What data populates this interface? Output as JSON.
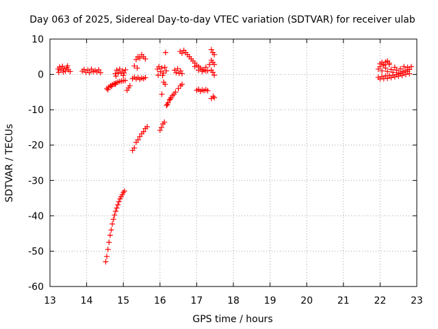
{
  "chart_data": {
    "type": "scatter",
    "title": "Day 063 of 2025, Sidereal Day-to-day VTEC variation (SDTVAR) for receiver ulab",
    "xlabel": "GPS time / hours",
    "ylabel": "SDTVAR / TECUs",
    "xlim": [
      13,
      23
    ],
    "ylim": [
      -60,
      10
    ],
    "xticks": [
      13,
      14,
      15,
      16,
      17,
      18,
      19,
      20,
      21,
      22,
      23
    ],
    "yticks": [
      10,
      0,
      -10,
      -20,
      -30,
      -40,
      -50,
      -60
    ],
    "xtick_labels": [
      "13",
      "14",
      "15",
      "16",
      "17",
      "18",
      "19",
      "20",
      "21",
      "22",
      "23"
    ],
    "ytick_labels": [
      "10",
      "0",
      "-10",
      "-20",
      "-30",
      "-40",
      "-50",
      "-60"
    ],
    "grid": true,
    "marker": "+",
    "color": "#ff0000",
    "series": [
      {
        "name": "SDTVAR",
        "points": [
          [
            13.22,
            1.5
          ],
          [
            13.26,
            2.1
          ],
          [
            13.3,
            1.2
          ],
          [
            13.34,
            2.3
          ],
          [
            13.38,
            1.6
          ],
          [
            13.42,
            0.9
          ],
          [
            13.46,
            1.9
          ],
          [
            13.5,
            1.3
          ],
          [
            13.55,
            0.8
          ],
          [
            13.24,
            0.6
          ],
          [
            13.36,
            0.7
          ],
          [
            13.48,
            2.4
          ],
          [
            13.88,
            0.9
          ],
          [
            13.93,
            1.4
          ],
          [
            13.98,
            0.6
          ],
          [
            14.03,
            1.2
          ],
          [
            14.08,
            0.5
          ],
          [
            14.13,
            1.5
          ],
          [
            14.18,
            0.8
          ],
          [
            14.23,
            1.1
          ],
          [
            14.28,
            0.7
          ],
          [
            14.33,
            1.3
          ],
          [
            14.38,
            0.5
          ],
          [
            14.55,
            -4.0
          ],
          [
            14.6,
            -3.6
          ],
          [
            14.65,
            -3.2
          ],
          [
            14.7,
            -2.9
          ],
          [
            14.75,
            -2.6
          ],
          [
            14.8,
            -2.4
          ],
          [
            14.85,
            -2.2
          ],
          [
            14.9,
            -2.0
          ],
          [
            14.95,
            -1.9
          ],
          [
            15.0,
            -1.8
          ],
          [
            15.05,
            -1.7
          ],
          [
            14.58,
            -4.3
          ],
          [
            14.68,
            -3.4
          ],
          [
            14.78,
            -2.8
          ],
          [
            14.78,
            0.2
          ],
          [
            14.82,
            1.2
          ],
          [
            14.86,
            0.5
          ],
          [
            14.9,
            1.5
          ],
          [
            14.94,
            0.3
          ],
          [
            14.98,
            1.0
          ],
          [
            15.02,
            0.4
          ],
          [
            15.06,
            1.3
          ],
          [
            14.8,
            -0.5
          ],
          [
            15.0,
            -0.3
          ],
          [
            15.1,
            -4.5
          ],
          [
            15.14,
            -3.8
          ],
          [
            15.18,
            -3.2
          ],
          [
            15.25,
            -1.2
          ],
          [
            15.3,
            -0.8
          ],
          [
            15.35,
            -1.3
          ],
          [
            15.4,
            -0.9
          ],
          [
            15.45,
            -1.4
          ],
          [
            15.5,
            -1.0
          ],
          [
            15.55,
            -1.2
          ],
          [
            15.6,
            -0.9
          ],
          [
            15.3,
            2.4
          ],
          [
            15.38,
            1.8
          ],
          [
            15.35,
            4.2
          ],
          [
            15.4,
            5.0
          ],
          [
            15.45,
            4.6
          ],
          [
            15.5,
            5.6
          ],
          [
            15.55,
            5.0
          ],
          [
            15.6,
            4.4
          ],
          [
            16.05,
            -5.6
          ],
          [
            16.18,
            -8.8
          ],
          [
            16.22,
            -8.0
          ],
          [
            16.26,
            -7.2
          ],
          [
            16.3,
            -6.6
          ],
          [
            16.34,
            -6.0
          ],
          [
            16.38,
            -5.6
          ],
          [
            16.42,
            -5.0
          ],
          [
            16.5,
            -4.0
          ],
          [
            16.56,
            -3.2
          ],
          [
            16.6,
            -2.8
          ],
          [
            16.2,
            -8.5
          ],
          [
            16.28,
            -7.0
          ],
          [
            15.93,
            1.5
          ],
          [
            15.97,
            2.2
          ],
          [
            16.01,
            0.8
          ],
          [
            16.05,
            1.8
          ],
          [
            16.09,
            0.4
          ],
          [
            16.13,
            2.0
          ],
          [
            16.17,
            1.0
          ],
          [
            15.95,
            -0.2
          ],
          [
            16.07,
            -0.3
          ],
          [
            16.1,
            -2.2
          ],
          [
            16.14,
            -2.8
          ],
          [
            16.4,
            1.2
          ],
          [
            16.44,
            0.5
          ],
          [
            16.48,
            1.6
          ],
          [
            16.52,
            0.3
          ],
          [
            16.56,
            1.0
          ],
          [
            16.6,
            0.2
          ],
          [
            16.55,
            6.5
          ],
          [
            16.6,
            6.0
          ],
          [
            16.65,
            6.8
          ],
          [
            16.7,
            6.2
          ],
          [
            16.75,
            5.6
          ],
          [
            16.8,
            5.0
          ],
          [
            16.85,
            4.4
          ],
          [
            16.9,
            3.8
          ],
          [
            16.95,
            3.2
          ],
          [
            17.0,
            2.6
          ],
          [
            17.05,
            2.2
          ],
          [
            17.1,
            1.8
          ],
          [
            17.15,
            1.4
          ],
          [
            17.2,
            1.2
          ],
          [
            17.25,
            1.0
          ],
          [
            17.3,
            1.0
          ],
          [
            16.95,
            2.2
          ],
          [
            17.05,
            1.2
          ],
          [
            17.15,
            0.8
          ],
          [
            17.25,
            2.0
          ],
          [
            17.35,
            2.8
          ],
          [
            17.4,
            7.0
          ],
          [
            17.44,
            6.2
          ],
          [
            17.48,
            5.6
          ],
          [
            17.4,
            4.0
          ],
          [
            17.44,
            3.4
          ],
          [
            17.48,
            2.8
          ],
          [
            17.4,
            1.2
          ],
          [
            17.44,
            0.6
          ],
          [
            17.48,
            -0.2
          ],
          [
            17.0,
            -4.5
          ],
          [
            17.05,
            -4.2
          ],
          [
            17.1,
            -4.8
          ],
          [
            17.15,
            -4.4
          ],
          [
            17.2,
            -4.6
          ],
          [
            17.25,
            -4.3
          ],
          [
            17.3,
            -4.6
          ],
          [
            17.4,
            -6.8
          ],
          [
            17.45,
            -6.2
          ],
          [
            17.48,
            -6.6
          ],
          [
            16.15,
            6.2
          ],
          [
            16.0,
            -15.8
          ],
          [
            16.04,
            -15.0
          ],
          [
            16.08,
            -14.0
          ],
          [
            16.12,
            -13.5
          ],
          [
            15.25,
            -21.5
          ],
          [
            15.3,
            -20.8
          ],
          [
            15.35,
            -19.2
          ],
          [
            15.4,
            -18.5
          ],
          [
            15.45,
            -17.6
          ],
          [
            15.5,
            -16.8
          ],
          [
            15.55,
            -16.2
          ],
          [
            15.6,
            -15.3
          ],
          [
            15.65,
            -14.8
          ],
          [
            14.52,
            -53.0
          ],
          [
            14.55,
            -51.5
          ],
          [
            14.58,
            -49.5
          ],
          [
            14.61,
            -47.5
          ],
          [
            14.64,
            -45.5
          ],
          [
            14.67,
            -44.0
          ],
          [
            14.7,
            -42.3
          ],
          [
            14.73,
            -41.0
          ],
          [
            14.76,
            -39.8
          ],
          [
            14.79,
            -38.7
          ],
          [
            14.82,
            -37.8
          ],
          [
            14.85,
            -36.9
          ],
          [
            14.88,
            -36.0
          ],
          [
            14.91,
            -35.2
          ],
          [
            14.94,
            -34.6
          ],
          [
            14.97,
            -34.0
          ],
          [
            15.0,
            -33.4
          ],
          [
            15.03,
            -33.0
          ],
          [
            21.95,
            1.5
          ],
          [
            22.0,
            2.2
          ],
          [
            22.05,
            1.0
          ],
          [
            22.1,
            2.6
          ],
          [
            22.15,
            1.8
          ],
          [
            22.2,
            0.8
          ],
          [
            22.25,
            2.8
          ],
          [
            22.3,
            1.4
          ],
          [
            22.35,
            0.6
          ],
          [
            22.4,
            2.0
          ],
          [
            22.45,
            1.2
          ],
          [
            22.5,
            0.4
          ],
          [
            22.55,
            1.6
          ],
          [
            22.6,
            0.8
          ],
          [
            22.65,
            2.2
          ],
          [
            22.7,
            1.2
          ],
          [
            22.75,
            2.0
          ],
          [
            22.8,
            1.4
          ],
          [
            22.85,
            2.2
          ],
          [
            21.95,
            -0.8
          ],
          [
            22.0,
            -1.3
          ],
          [
            22.05,
            -0.6
          ],
          [
            22.1,
            -1.2
          ],
          [
            22.15,
            -0.4
          ],
          [
            22.2,
            -1.1
          ],
          [
            22.25,
            -0.3
          ],
          [
            22.3,
            -0.9
          ],
          [
            22.35,
            -0.2
          ],
          [
            22.4,
            -0.7
          ],
          [
            22.45,
            0.0
          ],
          [
            22.5,
            -0.5
          ],
          [
            22.55,
            0.2
          ],
          [
            22.6,
            -0.3
          ],
          [
            22.65,
            0.5
          ],
          [
            22.7,
            0.0
          ],
          [
            22.75,
            0.8
          ],
          [
            22.8,
            0.2
          ],
          [
            22.0,
            3.0
          ],
          [
            22.05,
            3.4
          ],
          [
            22.1,
            2.8
          ],
          [
            22.15,
            3.5
          ],
          [
            22.2,
            3.8
          ],
          [
            22.25,
            3.2
          ]
        ]
      }
    ]
  }
}
